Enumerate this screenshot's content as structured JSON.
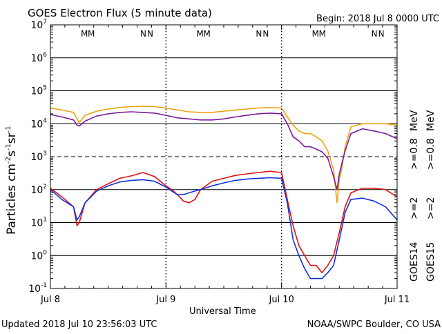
{
  "header": {
    "title": "GOES Electron Flux (5 minute data)",
    "begin": "Begin: 2018 Jul 8 0000 UTC"
  },
  "footer": {
    "updated": "Updated 2018 Jul 10 23:56:03 UTC",
    "credit": "NOAA/SWPC Boulder, CO USA"
  },
  "axes": {
    "ylabel_base": "Particles cm",
    "ylabel_sup1": "-2",
    "ylabel_mid1": "s",
    "ylabel_sup2": "-1",
    "ylabel_mid2": "sr",
    "ylabel_sup3": "-1",
    "xlabel": "Universal Time"
  },
  "legend": {
    "goes14": "GOES14",
    "goes15": "GOES15",
    "entries": [
      {
        "label": ">=2",
        "color": "#1030e0"
      },
      {
        "label": ">=2",
        "color": "#e01010"
      },
      {
        "label": ">=0.8",
        "color": "#7a1a9a"
      },
      {
        "label": ">=0.8",
        "color": "#f0a010"
      }
    ],
    "unit": "MeV"
  },
  "markers": {
    "colors": {
      "M_blue": "#1030e0",
      "M_red": "#e01010"
    },
    "groups": [
      {
        "day": 0,
        "labels": [
          {
            "t": "M",
            "c": "#1030e0"
          },
          {
            "t": "M",
            "c": "#e01010"
          },
          {
            "t": "N",
            "c": "#1030e0"
          },
          {
            "t": "N",
            "c": "#e01010"
          }
        ]
      },
      {
        "day": 1,
        "labels": [
          {
            "t": "M",
            "c": "#1030e0"
          },
          {
            "t": "M",
            "c": "#e01010"
          },
          {
            "t": "N",
            "c": "#1030e0"
          },
          {
            "t": "N",
            "c": "#e01010"
          }
        ]
      },
      {
        "day": 2,
        "labels": [
          {
            "t": "M",
            "c": "#1030e0"
          },
          {
            "t": "M",
            "c": "#e01010"
          },
          {
            "t": "N",
            "c": "#1030e0"
          },
          {
            "t": "N",
            "c": "#e01010"
          }
        ]
      }
    ]
  },
  "chart_data": {
    "type": "line",
    "title": "GOES Electron Flux (5 minute data)",
    "xlabel": "Universal Time",
    "ylabel": "Particles cm-2 s-1 sr-1",
    "yscale": "log",
    "ylim": [
      0.1,
      10000000
    ],
    "xlim": [
      0,
      3
    ],
    "x_unit": "days since 2018 Jul 8 0000 UTC",
    "xticks": [
      "Jul 8",
      "Jul 9",
      "Jul 10",
      "Jul 11"
    ],
    "yticks": [
      0.1,
      1,
      10,
      100,
      1000,
      10000,
      100000,
      1000000,
      10000000
    ],
    "threshold_lines": [
      1000
    ],
    "series": [
      {
        "name": "GOES15 >=0.8 MeV",
        "color": "#f0a010",
        "x": [
          0,
          0.1,
          0.2,
          0.23,
          0.25,
          0.3,
          0.4,
          0.5,
          0.6,
          0.7,
          0.8,
          0.9,
          1.0,
          1.1,
          1.2,
          1.3,
          1.4,
          1.5,
          1.6,
          1.7,
          1.8,
          1.9,
          2.0,
          2.05,
          2.1,
          2.15,
          2.2,
          2.25,
          2.3,
          2.35,
          2.4,
          2.45,
          2.48,
          2.5,
          2.52,
          2.55,
          2.6,
          2.7,
          2.8,
          2.9,
          3.0
        ],
        "y": [
          30000,
          26000,
          22000,
          14000,
          11000,
          18000,
          24000,
          28000,
          31000,
          33000,
          34000,
          33000,
          30000,
          26000,
          23000,
          22000,
          22000,
          24000,
          26000,
          28000,
          30000,
          31000,
          30000,
          16000,
          9000,
          6000,
          5000,
          5000,
          4000,
          3000,
          1500,
          400,
          40,
          200,
          400,
          2000,
          8000,
          10000,
          10000,
          10000,
          9000
        ]
      },
      {
        "name": "GOES14 >=0.8 MeV",
        "color": "#7a1a9a",
        "x": [
          0,
          0.1,
          0.2,
          0.23,
          0.25,
          0.3,
          0.4,
          0.5,
          0.6,
          0.7,
          0.8,
          0.9,
          1.0,
          1.1,
          1.2,
          1.3,
          1.4,
          1.5,
          1.6,
          1.7,
          1.8,
          1.9,
          2.0,
          2.05,
          2.1,
          2.15,
          2.2,
          2.25,
          2.3,
          2.35,
          2.4,
          2.45,
          2.48,
          2.5,
          2.55,
          2.6,
          2.7,
          2.8,
          2.9,
          3.0
        ],
        "y": [
          19000,
          16000,
          13000,
          9000,
          8500,
          12000,
          17000,
          20000,
          22000,
          23000,
          22000,
          21000,
          18000,
          15000,
          14000,
          13000,
          13000,
          14000,
          16000,
          18000,
          20000,
          21000,
          20000,
          10000,
          4000,
          3000,
          2000,
          2000,
          1700,
          1400,
          900,
          250,
          100,
          300,
          1500,
          5000,
          7000,
          6000,
          5000,
          3500
        ]
      },
      {
        "name": "GOES15 >=2 MeV",
        "color": "#e01010",
        "x": [
          0,
          0.1,
          0.2,
          0.23,
          0.25,
          0.3,
          0.4,
          0.5,
          0.6,
          0.7,
          0.8,
          0.9,
          1.0,
          1.05,
          1.1,
          1.15,
          1.2,
          1.25,
          1.3,
          1.4,
          1.5,
          1.6,
          1.7,
          1.8,
          1.9,
          2.0,
          2.05,
          2.1,
          2.15,
          2.2,
          2.25,
          2.3,
          2.35,
          2.4,
          2.45,
          2.5,
          2.55,
          2.6,
          2.7,
          2.8,
          2.9,
          3.0
        ],
        "y": [
          110,
          60,
          30,
          8,
          10,
          40,
          100,
          150,
          220,
          260,
          330,
          250,
          130,
          100,
          70,
          45,
          40,
          50,
          100,
          180,
          220,
          270,
          300,
          330,
          360,
          330,
          50,
          8,
          2,
          1,
          0.5,
          0.5,
          0.3,
          0.5,
          1,
          5,
          30,
          80,
          110,
          110,
          100,
          60
        ]
      },
      {
        "name": "GOES14 >=2 MeV",
        "color": "#1030e0",
        "x": [
          0,
          0.1,
          0.2,
          0.23,
          0.25,
          0.3,
          0.4,
          0.5,
          0.6,
          0.7,
          0.8,
          0.9,
          1.0,
          1.05,
          1.1,
          1.15,
          1.2,
          1.25,
          1.3,
          1.4,
          1.5,
          1.6,
          1.7,
          1.8,
          1.9,
          2.0,
          2.05,
          2.1,
          2.15,
          2.2,
          2.25,
          2.3,
          2.35,
          2.4,
          2.45,
          2.5,
          2.55,
          2.6,
          2.7,
          2.8,
          2.9,
          3.0
        ],
        "y": [
          100,
          50,
          30,
          12,
          15,
          40,
          90,
          130,
          170,
          190,
          200,
          180,
          120,
          90,
          70,
          70,
          80,
          90,
          100,
          130,
          160,
          190,
          210,
          220,
          230,
          220,
          40,
          3,
          1,
          0.4,
          0.2,
          0.2,
          0.2,
          0.3,
          0.5,
          3,
          20,
          50,
          55,
          45,
          30,
          12
        ]
      }
    ]
  }
}
